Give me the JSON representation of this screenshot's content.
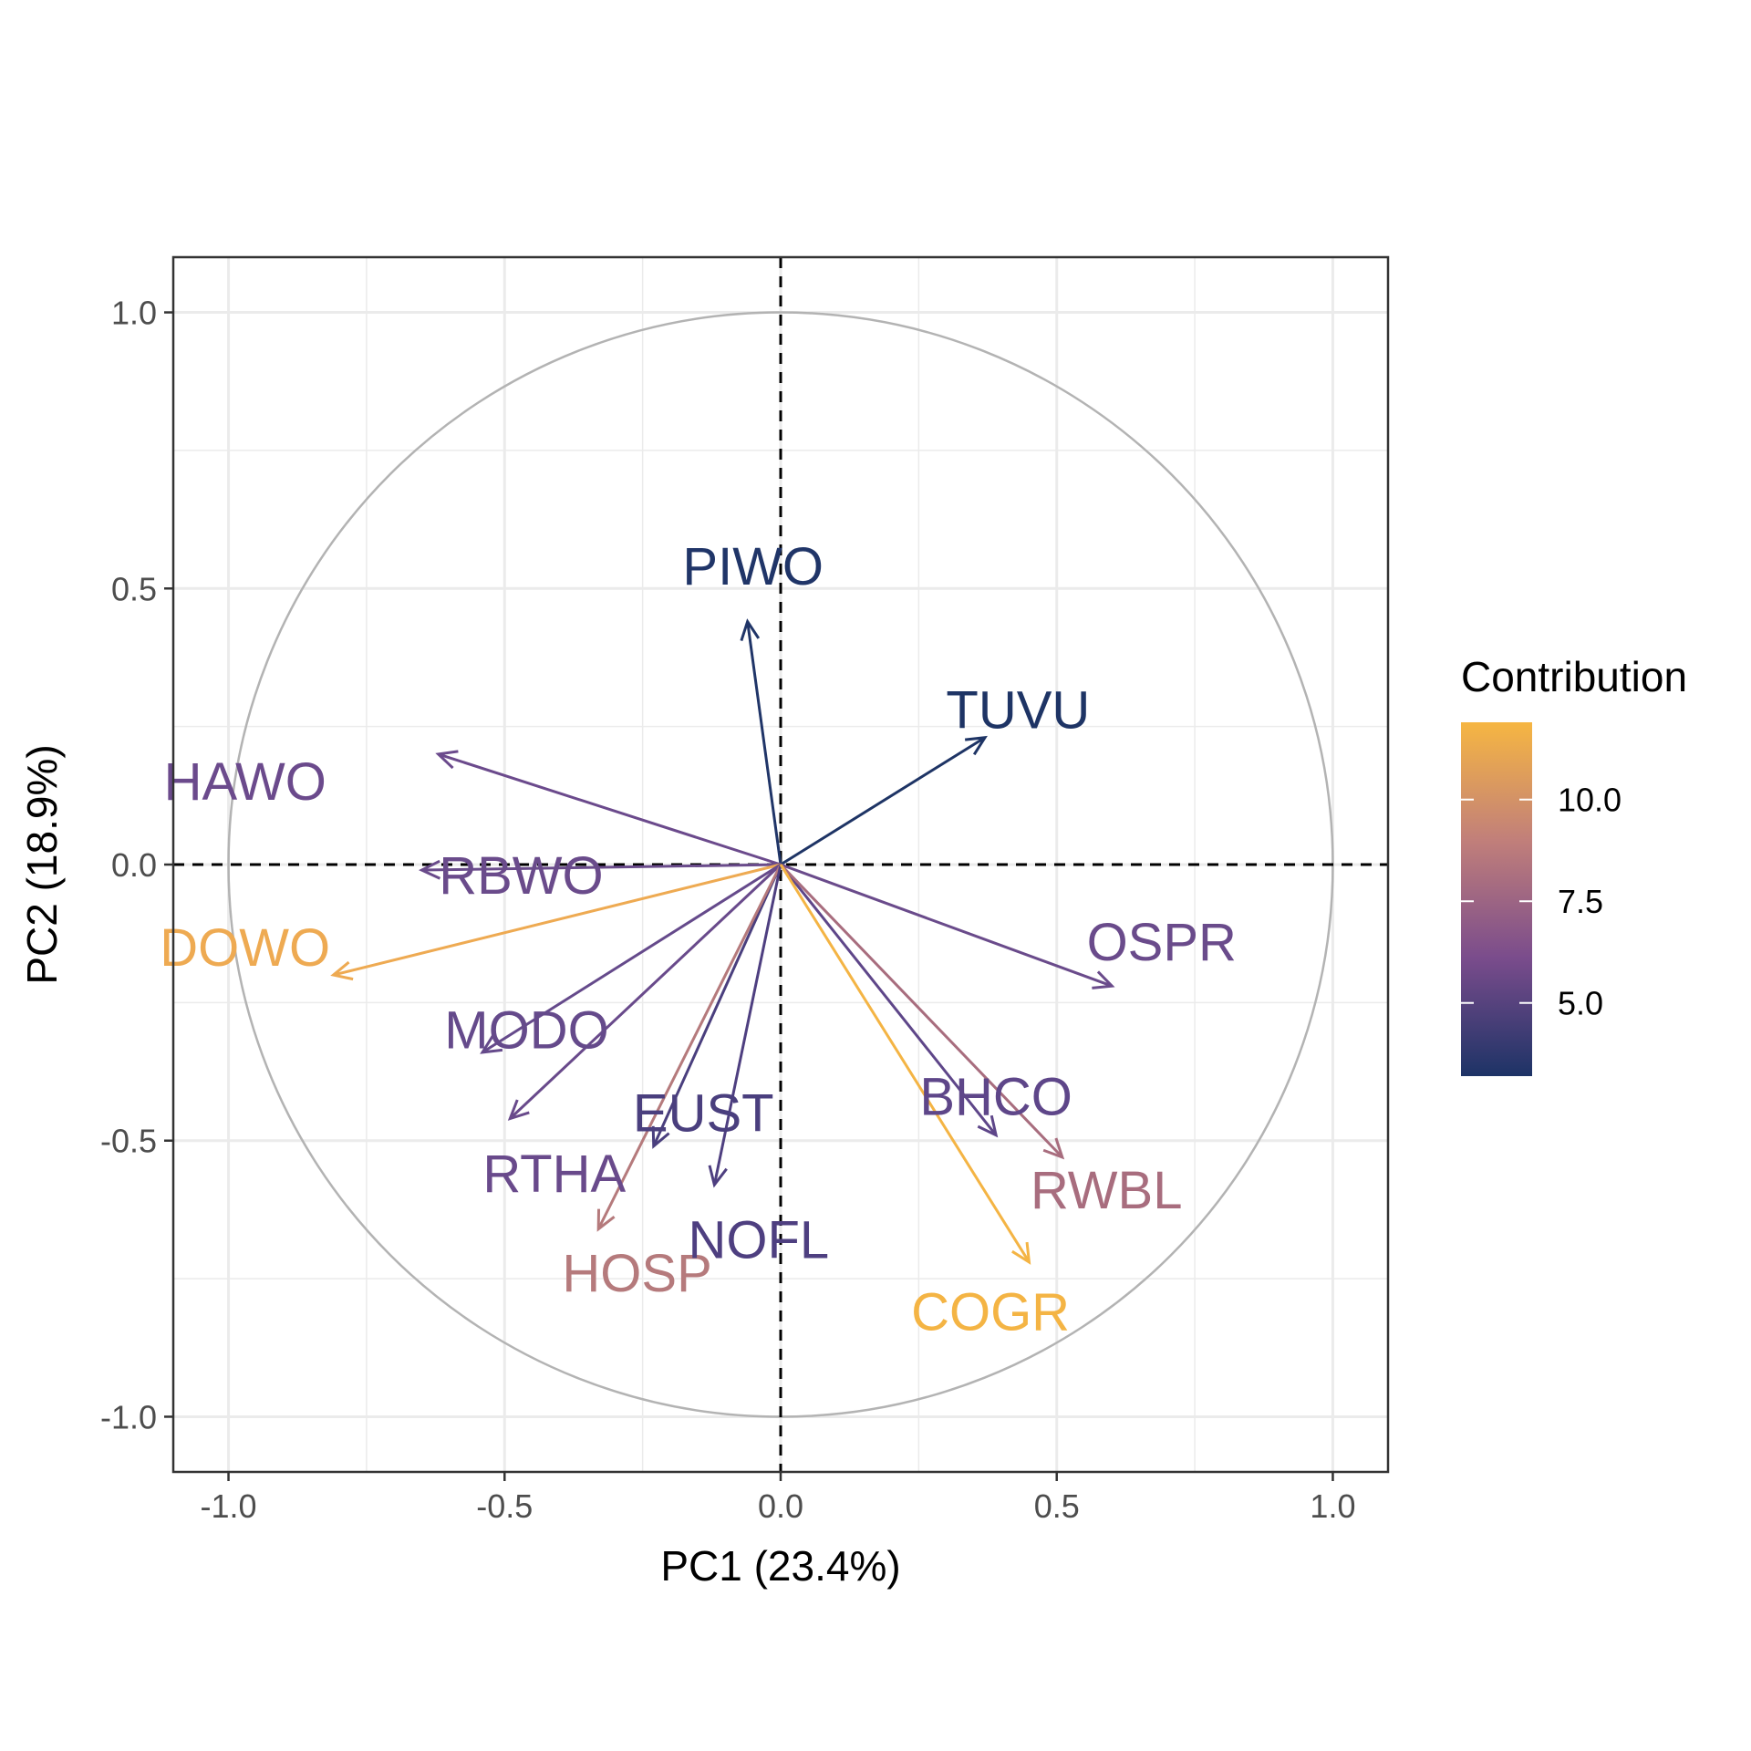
{
  "chart_data": {
    "type": "pca-variable-correlation-circle",
    "xlabel": "PC1 (23.4%)",
    "ylabel": "PC2 (18.9%)",
    "xlim": [
      -1.1,
      1.1
    ],
    "ylim": [
      -1.1,
      1.1
    ],
    "x_ticks": [
      -1.0,
      -0.5,
      0.0,
      0.5,
      1.0
    ],
    "x_tick_labels": [
      "-1.0",
      "-0.5",
      "0.0",
      "0.5",
      "1.0"
    ],
    "y_ticks": [
      1.0,
      0.5,
      0.0,
      -0.5,
      -1.0
    ],
    "y_tick_labels": [
      "1.0",
      "0.5",
      "0.0",
      "-0.5",
      "-1.0"
    ],
    "grid": true,
    "unit_circle": true,
    "zero_lines": "dashed",
    "legend": {
      "title": "Contribution",
      "placement": "right",
      "range": [
        3.2,
        11.9
      ],
      "breaks": [
        10.0,
        7.5,
        5.0
      ],
      "break_labels": [
        "10.0",
        "7.5",
        "5.0"
      ],
      "colors": [
        "#F6B642",
        "#C17F7A",
        "#7A4C8C",
        "#1D3366"
      ]
    },
    "variables": [
      {
        "name": "PIWO",
        "x": -0.06,
        "y": 0.44,
        "contrib": 3.5,
        "color": "#203568"
      },
      {
        "name": "TUVU",
        "x": 0.37,
        "y": 0.23,
        "contrib": 3.2,
        "color": "#1E3465"
      },
      {
        "name": "HAWO",
        "x": -0.62,
        "y": 0.2,
        "contrib": 7.0,
        "color": "#6B4A8C"
      },
      {
        "name": "RBWO",
        "x": -0.65,
        "y": -0.01,
        "contrib": 7.2,
        "color": "#6A4B8B"
      },
      {
        "name": "DOWO",
        "x": -0.81,
        "y": -0.2,
        "contrib": 11.6,
        "color": "#EEAA52"
      },
      {
        "name": "MODO",
        "x": -0.54,
        "y": -0.34,
        "contrib": 6.6,
        "color": "#654A8B"
      },
      {
        "name": "RTHA",
        "x": -0.49,
        "y": -0.46,
        "contrib": 6.8,
        "color": "#694A8B"
      },
      {
        "name": "EUST",
        "x": -0.23,
        "y": -0.51,
        "contrib": 5.0,
        "color": "#4A3F7E"
      },
      {
        "name": "HOSP",
        "x": -0.33,
        "y": -0.66,
        "contrib": 9.8,
        "color": "#B57A7C"
      },
      {
        "name": "NOFL",
        "x": -0.12,
        "y": -0.58,
        "contrib": 5.5,
        "color": "#4E3F80"
      },
      {
        "name": "OSPR",
        "x": 0.6,
        "y": -0.22,
        "contrib": 7.0,
        "color": "#6A4B8B"
      },
      {
        "name": "BHCO",
        "x": 0.39,
        "y": -0.49,
        "contrib": 6.5,
        "color": "#5E4689"
      },
      {
        "name": "RWBL",
        "x": 0.51,
        "y": -0.53,
        "contrib": 9.5,
        "color": "#A86D7E"
      },
      {
        "name": "COGR",
        "x": 0.45,
        "y": -0.72,
        "contrib": 11.9,
        "color": "#F4B444"
      }
    ]
  }
}
